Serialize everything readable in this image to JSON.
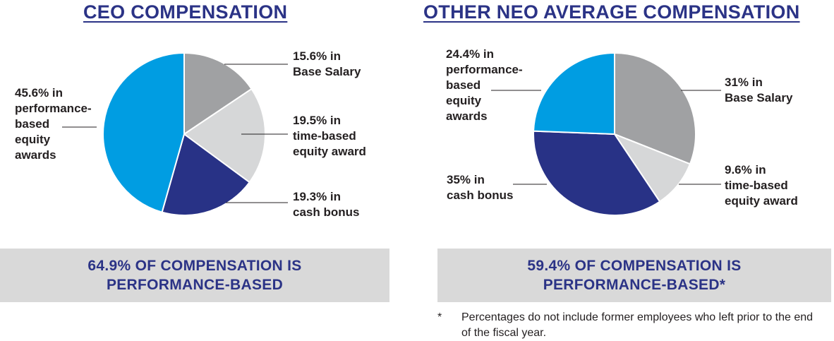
{
  "colors": {
    "title": "#2b3386",
    "summary_bg": "#d9d9d9",
    "base_salary": "#a0a1a3",
    "time_based": "#d6d7d8",
    "cash_bonus": "#283286",
    "performance_based": "#009de2"
  },
  "chart_data": [
    {
      "type": "pie",
      "title": "CEO COMPENSATION",
      "slices": [
        {
          "name": "Base Salary",
          "value": 15.6,
          "label": "15.6% in\nBase Salary",
          "color": "#a0a1a3"
        },
        {
          "name": "time-based equity award",
          "value": 19.5,
          "label": "19.5% in\ntime-based\nequity award",
          "color": "#d6d7d8"
        },
        {
          "name": "cash bonus",
          "value": 19.3,
          "label": "19.3% in\ncash bonus",
          "color": "#283286"
        },
        {
          "name": "performance-based equity awards",
          "value": 45.6,
          "label": "45.6% in\nperformance-\nbased\nequity\nawards",
          "color": "#009de2"
        }
      ],
      "summary": "64.9% OF COMPENSATION IS\nPERFORMANCE-BASED"
    },
    {
      "type": "pie",
      "title": "OTHER NEO AVERAGE COMPENSATION",
      "slices": [
        {
          "name": "Base Salary",
          "value": 31,
          "label": "31% in\nBase Salary",
          "color": "#a0a1a3"
        },
        {
          "name": "time-based equity award",
          "value": 9.6,
          "label": "9.6% in\ntime-based\nequity award",
          "color": "#d6d7d8"
        },
        {
          "name": "cash bonus",
          "value": 35,
          "label": "35% in\ncash bonus",
          "color": "#283286"
        },
        {
          "name": "performance-based equity awards",
          "value": 24.4,
          "label": "24.4% in\nperformance-\nbased\nequity\nawards",
          "color": "#009de2"
        }
      ],
      "summary": "59.4% OF COMPENSATION IS\nPERFORMANCE-BASED*"
    }
  ],
  "footnote": {
    "mark": "*",
    "text": "Percentages do not include former employees who left prior to the end of the fiscal year."
  }
}
